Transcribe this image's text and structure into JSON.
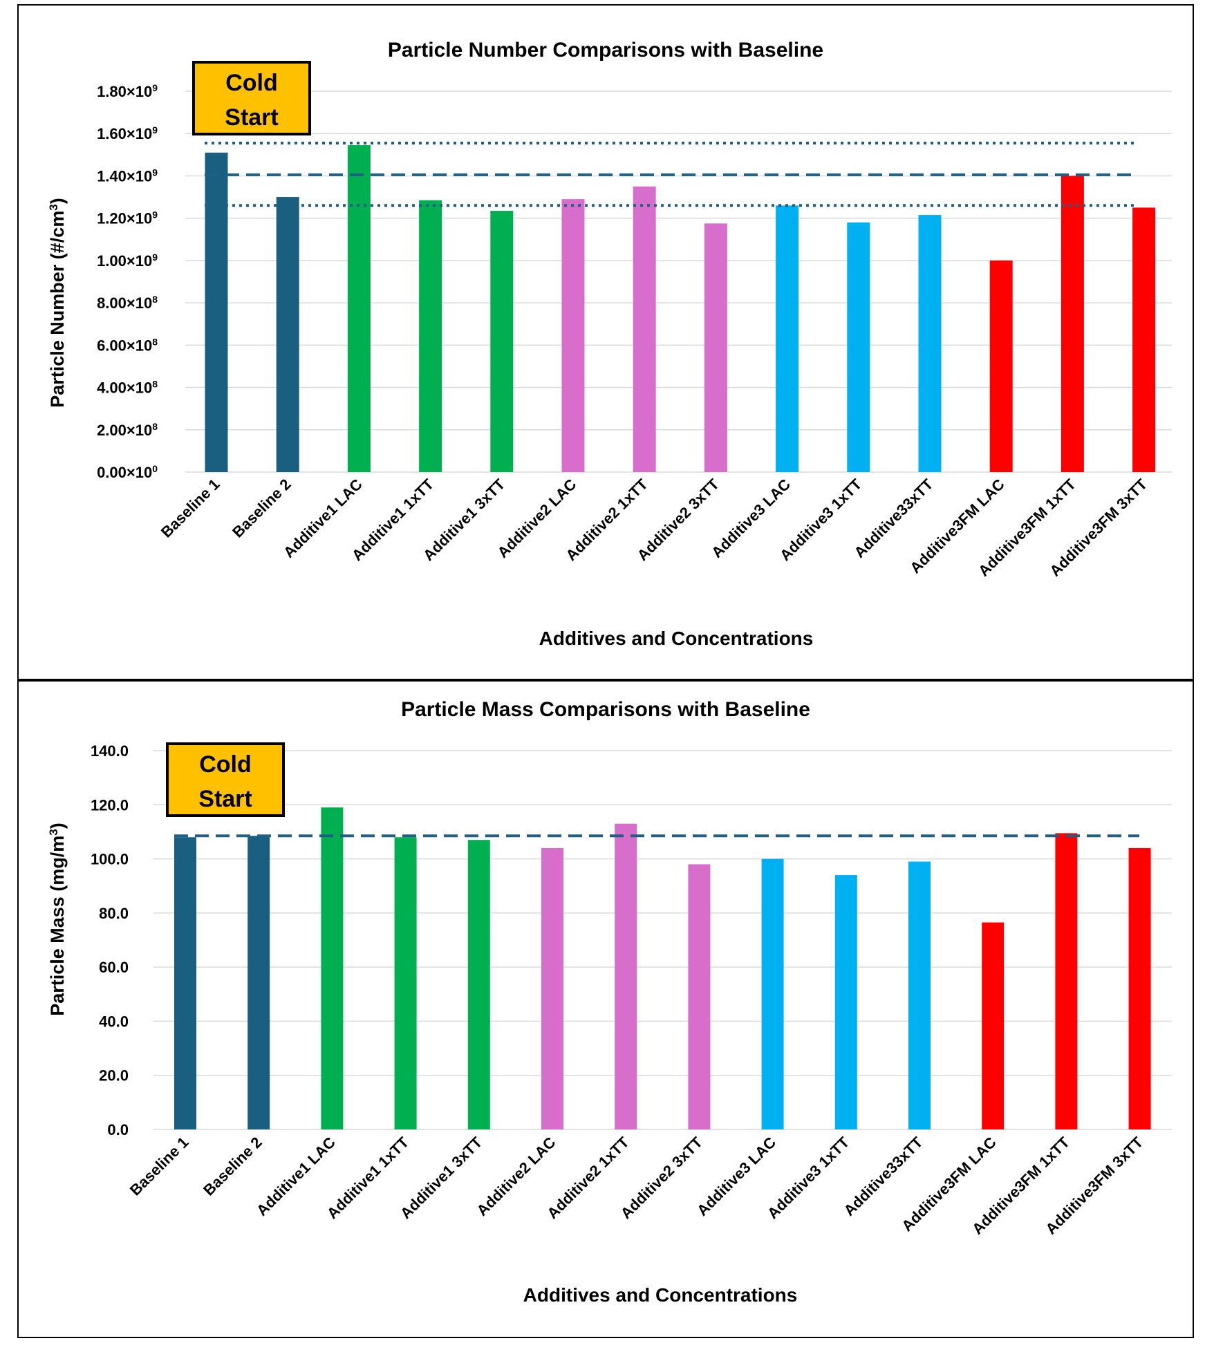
{
  "chart_data": [
    {
      "type": "bar",
      "title": "Particle Number Comparisons with Baseline",
      "xlabel": "Additives and Concentrations",
      "ylabel_main": "Particle Number (#/cm",
      "ylabel_sup": "3",
      "ylabel_end": ")",
      "ylim": [
        0,
        1800000000.0
      ],
      "yticks": [
        {
          "value": 0,
          "mantissa": "0.00",
          "exp": "0"
        },
        {
          "value": 200000000.0,
          "mantissa": "2.00",
          "exp": "8"
        },
        {
          "value": 400000000.0,
          "mantissa": "4.00",
          "exp": "8"
        },
        {
          "value": 600000000.0,
          "mantissa": "6.00",
          "exp": "8"
        },
        {
          "value": 800000000.0,
          "mantissa": "8.00",
          "exp": "8"
        },
        {
          "value": 1000000000.0,
          "mantissa": "1.00",
          "exp": "9"
        },
        {
          "value": 1200000000.0,
          "mantissa": "1.20",
          "exp": "9"
        },
        {
          "value": 1400000000.0,
          "mantissa": "1.40",
          "exp": "9"
        },
        {
          "value": 1600000000.0,
          "mantissa": "1.60",
          "exp": "9"
        },
        {
          "value": 1800000000.0,
          "mantissa": "1.80",
          "exp": "9"
        }
      ],
      "categories": [
        "Baseline 1",
        "Baseline 2",
        "Additive1 LAC",
        "Additive1 1xTT",
        "Additive1 3xTT",
        "Additive2 LAC",
        "Additive2 1xTT",
        "Additive2 3xTT",
        "Additive3 LAC",
        "Additive3 1xTT",
        "Additive33xTT",
        "Additive3FM LAC",
        "Additive3FM 1xTT",
        "Additive3FM 3xTT"
      ],
      "values": [
        1510000000.0,
        1300000000.0,
        1545000000.0,
        1285000000.0,
        1235000000.0,
        1290000000.0,
        1350000000.0,
        1175000000.0,
        1260000000.0,
        1180000000.0,
        1215000000.0,
        1000000000.0,
        1400000000.0,
        1250000000.0
      ],
      "colors": [
        "#1a5f80",
        "#1a5f80",
        "#00b050",
        "#00b050",
        "#00b050",
        "#d86ecc",
        "#d86ecc",
        "#d86ecc",
        "#00b0f0",
        "#00b0f0",
        "#00b0f0",
        "#ff0000",
        "#ff0000",
        "#ff0000"
      ],
      "reference_lines": [
        {
          "style": "dotted",
          "value": 1555000000.0
        },
        {
          "style": "dashed",
          "value": 1405000000.0
        },
        {
          "style": "dotted",
          "value": 1260000000.0
        }
      ],
      "annotation": {
        "line1": "Cold",
        "line2": "Start",
        "fill": "#ffc000"
      },
      "grid": true
    },
    {
      "type": "bar",
      "title": "Particle Mass Comparisons with Baseline",
      "xlabel": "Additives and Concentrations",
      "ylabel_main": "Particle Mass (mg/m",
      "ylabel_sup": "3",
      "ylabel_end": ")",
      "ylim": [
        0,
        140
      ],
      "yticks": [
        {
          "value": 0,
          "label": "0.0"
        },
        {
          "value": 20,
          "label": "20.0"
        },
        {
          "value": 40,
          "label": "40.0"
        },
        {
          "value": 60,
          "label": "60.0"
        },
        {
          "value": 80,
          "label": "80.0"
        },
        {
          "value": 100,
          "label": "100.0"
        },
        {
          "value": 120,
          "label": "120.0"
        },
        {
          "value": 140,
          "label": "140.0"
        }
      ],
      "categories": [
        "Baseline 1",
        "Baseline 2",
        "Additive1 LAC",
        "Additive1 1xTT",
        "Additive1 3xTT",
        "Additive2 LAC",
        "Additive2 1xTT",
        "Additive2 3xTT",
        "Additive3 LAC",
        "Additive3 1xTT",
        "Additive33xTT",
        "Additive3FM LAC",
        "Additive3FM 1xTT",
        "Additive3FM 3xTT"
      ],
      "values": [
        108.0,
        108.5,
        119.0,
        108.0,
        107.0,
        104.0,
        113.0,
        98.0,
        100.0,
        94.0,
        99.0,
        76.5,
        109.5,
        104.0
      ],
      "colors": [
        "#1a5f80",
        "#1a5f80",
        "#00b050",
        "#00b050",
        "#00b050",
        "#d86ecc",
        "#d86ecc",
        "#d86ecc",
        "#00b0f0",
        "#00b0f0",
        "#00b0f0",
        "#ff0000",
        "#ff0000",
        "#ff0000"
      ],
      "reference_lines": [
        {
          "style": "dashed",
          "value": 108.5
        }
      ],
      "annotation": {
        "line1": "Cold",
        "line2": "Start",
        "fill": "#ffc000"
      },
      "grid": true
    }
  ]
}
